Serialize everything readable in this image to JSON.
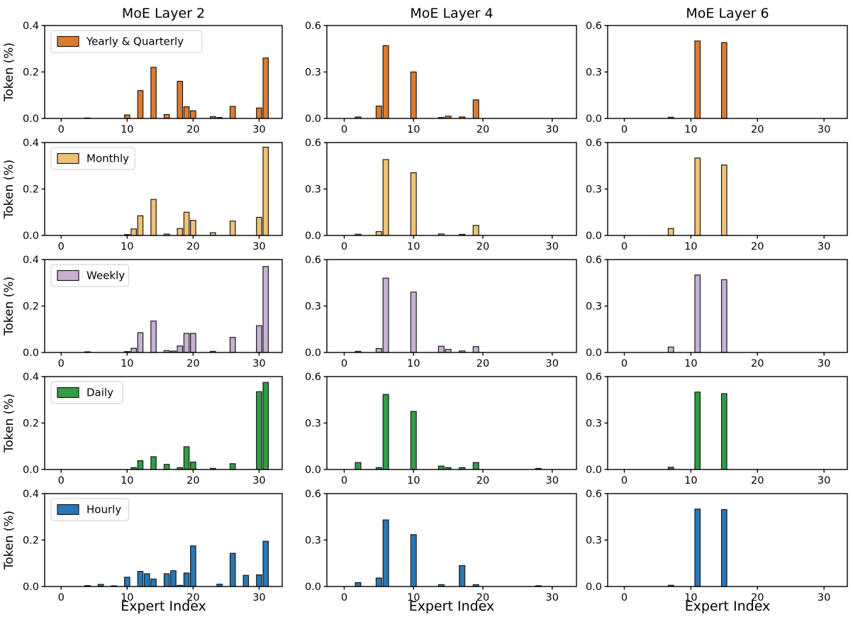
{
  "figure": {
    "background": "#ffffff",
    "edge_color": "#1a1a1a",
    "spine_color": "#000000",
    "legend_border_color": "#cccccc"
  },
  "chart_data": {
    "type": "bar",
    "xlabel": "Expert Index",
    "ylabel": "Token (%)",
    "x_range": [
      -2.5,
      33.5
    ],
    "x_ticks": [
      0,
      10,
      20,
      30
    ],
    "grid": false,
    "legend_position": "upper-left-first-column",
    "columns": [
      {
        "title": "MoE Layer 2",
        "ylim": [
          0,
          0.4
        ],
        "yticks": [
          0.0,
          0.2,
          0.4
        ]
      },
      {
        "title": "MoE Layer 4",
        "ylim": [
          0,
          0.6
        ],
        "yticks": [
          0.0,
          0.3,
          0.6
        ]
      },
      {
        "title": "MoE Layer 6",
        "ylim": [
          0,
          0.6
        ],
        "yticks": [
          0.0,
          0.3,
          0.6
        ]
      }
    ],
    "rows": [
      {
        "name": "Yearly & Quarterly",
        "color": "#dd7c30",
        "bars_by_column": [
          [
            [
              4,
              0.002
            ],
            [
              10,
              0.015
            ],
            [
              12,
              0.12
            ],
            [
              14,
              0.22
            ],
            [
              16,
              0.017
            ],
            [
              18,
              0.16
            ],
            [
              19,
              0.05
            ],
            [
              20,
              0.033
            ],
            [
              23,
              0.008
            ],
            [
              24,
              0.004
            ],
            [
              26,
              0.052
            ],
            [
              30,
              0.045
            ],
            [
              31,
              0.26
            ]
          ],
          [
            [
              2,
              0.01
            ],
            [
              5,
              0.08
            ],
            [
              6,
              0.47
            ],
            [
              10,
              0.3
            ],
            [
              14,
              0.006
            ],
            [
              15,
              0.015
            ],
            [
              17,
              0.01
            ],
            [
              19,
              0.12
            ]
          ],
          [
            [
              7,
              0.008
            ],
            [
              11,
              0.5
            ],
            [
              15,
              0.49
            ]
          ]
        ]
      },
      {
        "name": "Monthly",
        "color": "#f0c175",
        "bars_by_column": [
          [
            [
              10,
              0.004
            ],
            [
              11,
              0.028
            ],
            [
              12,
              0.085
            ],
            [
              14,
              0.155
            ],
            [
              16,
              0.006
            ],
            [
              18,
              0.03
            ],
            [
              19,
              0.1
            ],
            [
              20,
              0.065
            ],
            [
              23,
              0.012
            ],
            [
              26,
              0.062
            ],
            [
              30,
              0.078
            ],
            [
              31,
              0.38
            ]
          ],
          [
            [
              2,
              0.008
            ],
            [
              5,
              0.025
            ],
            [
              6,
              0.49
            ],
            [
              10,
              0.405
            ],
            [
              14,
              0.01
            ],
            [
              17,
              0.007
            ],
            [
              19,
              0.065
            ]
          ],
          [
            [
              7,
              0.045
            ],
            [
              11,
              0.5
            ],
            [
              15,
              0.455
            ]
          ]
        ]
      },
      {
        "name": "Weekly",
        "color": "#c7b1d3",
        "bars_by_column": [
          [
            [
              4,
              0.003
            ],
            [
              10,
              0.004
            ],
            [
              11,
              0.018
            ],
            [
              12,
              0.085
            ],
            [
              14,
              0.135
            ],
            [
              16,
              0.008
            ],
            [
              17,
              0.006
            ],
            [
              18,
              0.028
            ],
            [
              19,
              0.082
            ],
            [
              20,
              0.082
            ],
            [
              23,
              0.005
            ],
            [
              26,
              0.065
            ],
            [
              30,
              0.115
            ],
            [
              31,
              0.37
            ]
          ],
          [
            [
              2,
              0.007
            ],
            [
              5,
              0.025
            ],
            [
              6,
              0.48
            ],
            [
              10,
              0.39
            ],
            [
              14,
              0.04
            ],
            [
              15,
              0.02
            ],
            [
              17,
              0.01
            ],
            [
              19,
              0.038
            ]
          ],
          [
            [
              7,
              0.035
            ],
            [
              11,
              0.5
            ],
            [
              15,
              0.47
            ]
          ]
        ]
      },
      {
        "name": "Daily",
        "color": "#2f9e44",
        "bars_by_column": [
          [
            [
              11,
              0.008
            ],
            [
              12,
              0.038
            ],
            [
              14,
              0.055
            ],
            [
              16,
              0.022
            ],
            [
              18,
              0.008
            ],
            [
              19,
              0.098
            ],
            [
              20,
              0.032
            ],
            [
              23,
              0.005
            ],
            [
              26,
              0.025
            ],
            [
              30,
              0.335
            ],
            [
              31,
              0.375
            ]
          ],
          [
            [
              2,
              0.045
            ],
            [
              5,
              0.012
            ],
            [
              6,
              0.485
            ],
            [
              10,
              0.375
            ],
            [
              14,
              0.022
            ],
            [
              15,
              0.012
            ],
            [
              17,
              0.012
            ],
            [
              19,
              0.045
            ],
            [
              28,
              0.007
            ]
          ],
          [
            [
              7,
              0.015
            ],
            [
              11,
              0.5
            ],
            [
              15,
              0.49
            ]
          ]
        ]
      },
      {
        "name": "Hourly",
        "color": "#2878b5",
        "bars_by_column": [
          [
            [
              4,
              0.004
            ],
            [
              6,
              0.009
            ],
            [
              8,
              0.003
            ],
            [
              10,
              0.04
            ],
            [
              12,
              0.065
            ],
            [
              13,
              0.055
            ],
            [
              14,
              0.032
            ],
            [
              16,
              0.055
            ],
            [
              17,
              0.068
            ],
            [
              18,
              0.005
            ],
            [
              19,
              0.058
            ],
            [
              20,
              0.175
            ],
            [
              24,
              0.01
            ],
            [
              26,
              0.143
            ],
            [
              28,
              0.048
            ],
            [
              30,
              0.05
            ],
            [
              31,
              0.195
            ]
          ],
          [
            [
              2,
              0.025
            ],
            [
              5,
              0.055
            ],
            [
              6,
              0.43
            ],
            [
              10,
              0.335
            ],
            [
              14,
              0.012
            ],
            [
              17,
              0.135
            ],
            [
              19,
              0.012
            ],
            [
              28,
              0.005
            ]
          ],
          [
            [
              7,
              0.008
            ],
            [
              11,
              0.5
            ],
            [
              15,
              0.497
            ]
          ]
        ]
      }
    ]
  }
}
